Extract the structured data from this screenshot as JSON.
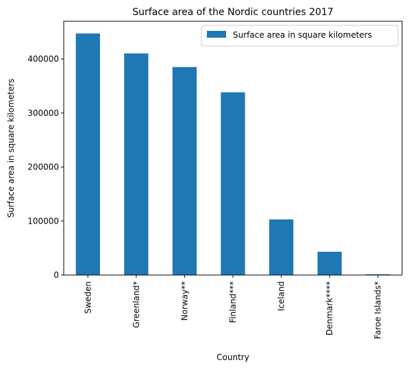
{
  "chart_data": {
    "type": "bar",
    "title": "Surface area of the Nordic countries 2017",
    "xlabel": "Country",
    "ylabel": "Surface area in square kilometers",
    "categories": [
      "Sweden",
      "Greenland*",
      "Norway**",
      "Finland***",
      "Iceland",
      "Denmark****",
      "Faroe Islands*"
    ],
    "series": [
      {
        "name": "Surface area in square kilometers",
        "values": [
          447430,
          410450,
          385180,
          338440,
          103000,
          43100,
          1400
        ]
      }
    ],
    "ylim": [
      0,
      470000
    ],
    "yticks": [
      0,
      100000,
      200000,
      300000,
      400000
    ],
    "ytick_labels": [
      "0",
      "100000",
      "200000",
      "300000",
      "400000"
    ],
    "grid": false,
    "legend_position": "top-right",
    "colors": {
      "bar": "#1f77b4",
      "axis": "#000000"
    }
  }
}
